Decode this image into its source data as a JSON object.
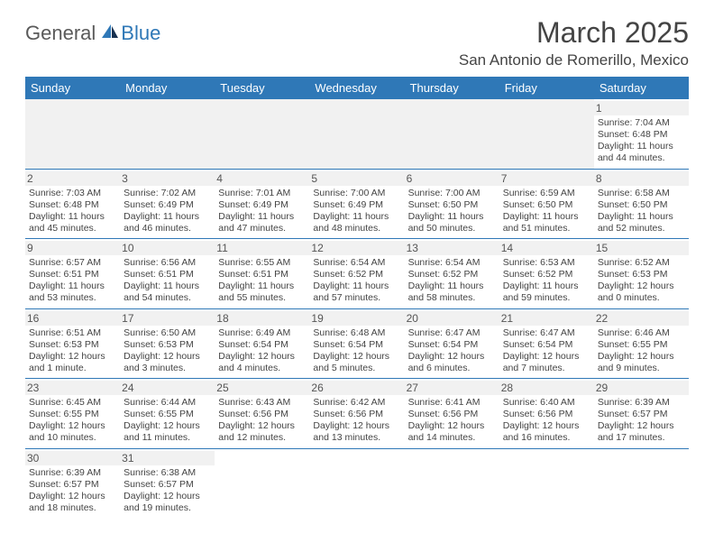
{
  "logo": {
    "part1": "General",
    "part2": "Blue"
  },
  "title": "March 2025",
  "location": "San Antonio de Romerillo, Mexico",
  "colors": {
    "header_bg": "#2f78b7",
    "header_text": "#ffffff",
    "row_separator": "#2f78b7",
    "daynum_bg": "#f1f1f1",
    "logo_gray": "#5a5a5a",
    "logo_blue": "#2f78b7"
  },
  "dayHeaders": [
    "Sunday",
    "Monday",
    "Tuesday",
    "Wednesday",
    "Thursday",
    "Friday",
    "Saturday"
  ],
  "weeks": [
    [
      null,
      null,
      null,
      null,
      null,
      null,
      {
        "n": 1,
        "sr": "7:04 AM",
        "ss": "6:48 PM",
        "dl": "11 hours and 44 minutes."
      }
    ],
    [
      {
        "n": 2,
        "sr": "7:03 AM",
        "ss": "6:48 PM",
        "dl": "11 hours and 45 minutes."
      },
      {
        "n": 3,
        "sr": "7:02 AM",
        "ss": "6:49 PM",
        "dl": "11 hours and 46 minutes."
      },
      {
        "n": 4,
        "sr": "7:01 AM",
        "ss": "6:49 PM",
        "dl": "11 hours and 47 minutes."
      },
      {
        "n": 5,
        "sr": "7:00 AM",
        "ss": "6:49 PM",
        "dl": "11 hours and 48 minutes."
      },
      {
        "n": 6,
        "sr": "7:00 AM",
        "ss": "6:50 PM",
        "dl": "11 hours and 50 minutes."
      },
      {
        "n": 7,
        "sr": "6:59 AM",
        "ss": "6:50 PM",
        "dl": "11 hours and 51 minutes."
      },
      {
        "n": 8,
        "sr": "6:58 AM",
        "ss": "6:50 PM",
        "dl": "11 hours and 52 minutes."
      }
    ],
    [
      {
        "n": 9,
        "sr": "6:57 AM",
        "ss": "6:51 PM",
        "dl": "11 hours and 53 minutes."
      },
      {
        "n": 10,
        "sr": "6:56 AM",
        "ss": "6:51 PM",
        "dl": "11 hours and 54 minutes."
      },
      {
        "n": 11,
        "sr": "6:55 AM",
        "ss": "6:51 PM",
        "dl": "11 hours and 55 minutes."
      },
      {
        "n": 12,
        "sr": "6:54 AM",
        "ss": "6:52 PM",
        "dl": "11 hours and 57 minutes."
      },
      {
        "n": 13,
        "sr": "6:54 AM",
        "ss": "6:52 PM",
        "dl": "11 hours and 58 minutes."
      },
      {
        "n": 14,
        "sr": "6:53 AM",
        "ss": "6:52 PM",
        "dl": "11 hours and 59 minutes."
      },
      {
        "n": 15,
        "sr": "6:52 AM",
        "ss": "6:53 PM",
        "dl": "12 hours and 0 minutes."
      }
    ],
    [
      {
        "n": 16,
        "sr": "6:51 AM",
        "ss": "6:53 PM",
        "dl": "12 hours and 1 minute."
      },
      {
        "n": 17,
        "sr": "6:50 AM",
        "ss": "6:53 PM",
        "dl": "12 hours and 3 minutes."
      },
      {
        "n": 18,
        "sr": "6:49 AM",
        "ss": "6:54 PM",
        "dl": "12 hours and 4 minutes."
      },
      {
        "n": 19,
        "sr": "6:48 AM",
        "ss": "6:54 PM",
        "dl": "12 hours and 5 minutes."
      },
      {
        "n": 20,
        "sr": "6:47 AM",
        "ss": "6:54 PM",
        "dl": "12 hours and 6 minutes."
      },
      {
        "n": 21,
        "sr": "6:47 AM",
        "ss": "6:54 PM",
        "dl": "12 hours and 7 minutes."
      },
      {
        "n": 22,
        "sr": "6:46 AM",
        "ss": "6:55 PM",
        "dl": "12 hours and 9 minutes."
      }
    ],
    [
      {
        "n": 23,
        "sr": "6:45 AM",
        "ss": "6:55 PM",
        "dl": "12 hours and 10 minutes."
      },
      {
        "n": 24,
        "sr": "6:44 AM",
        "ss": "6:55 PM",
        "dl": "12 hours and 11 minutes."
      },
      {
        "n": 25,
        "sr": "6:43 AM",
        "ss": "6:56 PM",
        "dl": "12 hours and 12 minutes."
      },
      {
        "n": 26,
        "sr": "6:42 AM",
        "ss": "6:56 PM",
        "dl": "12 hours and 13 minutes."
      },
      {
        "n": 27,
        "sr": "6:41 AM",
        "ss": "6:56 PM",
        "dl": "12 hours and 14 minutes."
      },
      {
        "n": 28,
        "sr": "6:40 AM",
        "ss": "6:56 PM",
        "dl": "12 hours and 16 minutes."
      },
      {
        "n": 29,
        "sr": "6:39 AM",
        "ss": "6:57 PM",
        "dl": "12 hours and 17 minutes."
      }
    ],
    [
      {
        "n": 30,
        "sr": "6:39 AM",
        "ss": "6:57 PM",
        "dl": "12 hours and 18 minutes."
      },
      {
        "n": 31,
        "sr": "6:38 AM",
        "ss": "6:57 PM",
        "dl": "12 hours and 19 minutes."
      },
      null,
      null,
      null,
      null,
      null
    ]
  ],
  "labels": {
    "sunrise": "Sunrise:",
    "sunset": "Sunset:",
    "daylight": "Daylight:"
  }
}
